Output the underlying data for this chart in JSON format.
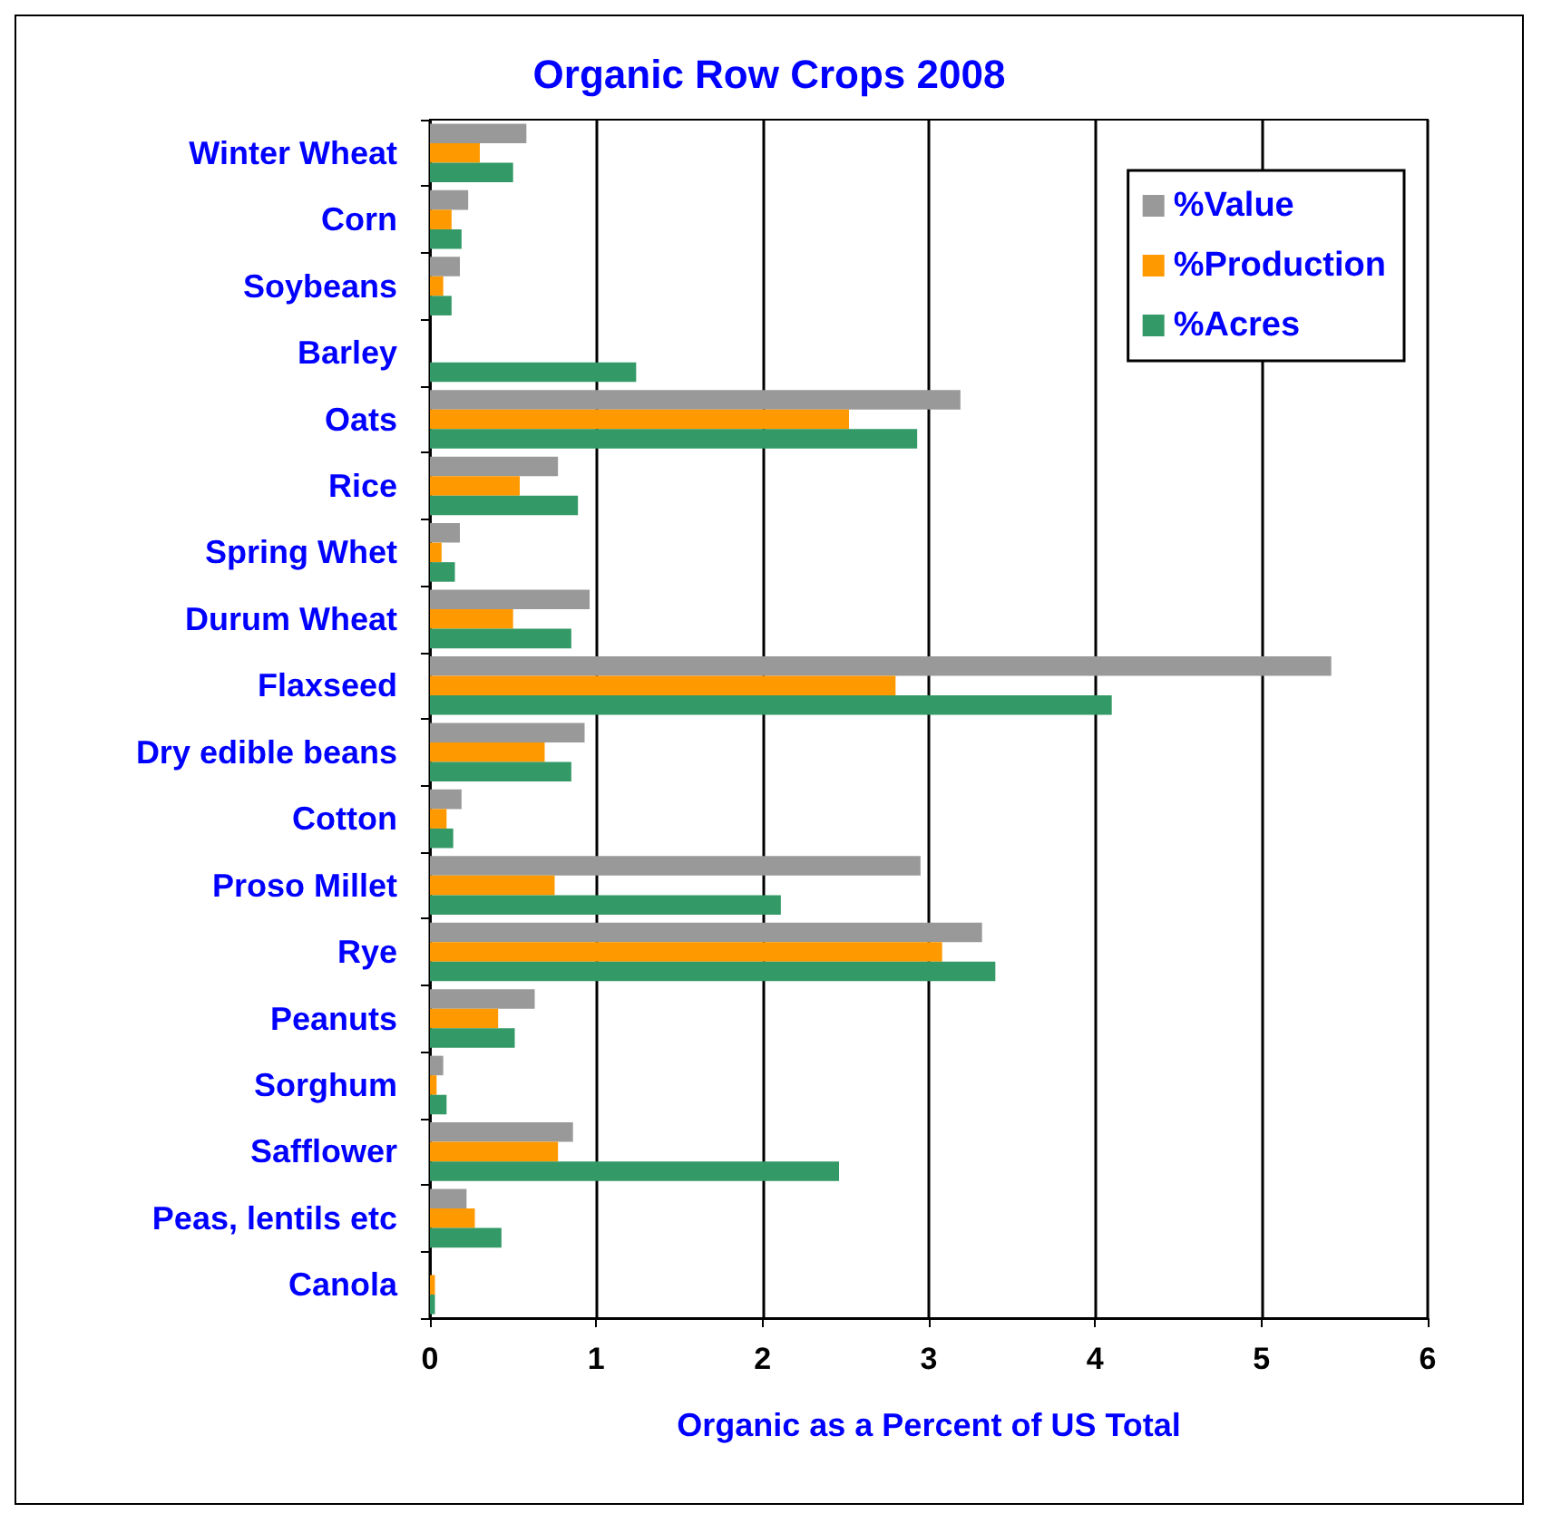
{
  "chart_data": {
    "type": "bar",
    "orientation": "horizontal",
    "title": "Organic Row Crops 2008",
    "xlabel": "Organic as a Percent of US Total",
    "categories": [
      "Winter Wheat",
      "Corn",
      "Soybeans",
      "Barley",
      "Oats",
      "Rice",
      "Spring Whet",
      "Durum Wheat",
      "Flaxseed",
      "Dry edible beans",
      "Cotton",
      "Proso Millet",
      "Rye",
      "Peanuts",
      "Sorghum",
      "Safflower",
      "Peas, lentils etc",
      "Canola"
    ],
    "series": [
      {
        "name": "%Value",
        "color": "#999999",
        "values": [
          0.58,
          0.23,
          0.18,
          0,
          3.19,
          0.77,
          0.18,
          0.96,
          5.42,
          0.93,
          0.19,
          2.95,
          3.32,
          0.63,
          0.08,
          0.86,
          0.22,
          0
        ]
      },
      {
        "name": "%Production",
        "color": "#ff9900",
        "values": [
          0.3,
          0.13,
          0.08,
          0,
          2.52,
          0.54,
          0.07,
          0.5,
          2.8,
          0.69,
          0.1,
          0.75,
          3.08,
          0.41,
          0.04,
          0.77,
          0.27,
          0.03
        ]
      },
      {
        "name": "%Acres",
        "color": "#339966",
        "values": [
          0.5,
          0.19,
          0.13,
          1.24,
          2.93,
          0.89,
          0.15,
          0.85,
          4.1,
          0.85,
          0.14,
          2.11,
          3.4,
          0.51,
          0.1,
          2.46,
          0.43,
          0.03
        ]
      }
    ],
    "xlim": [
      0,
      6
    ],
    "xticks": [
      0,
      1,
      2,
      3,
      4,
      5,
      6
    ],
    "grid": "x",
    "legend": "top right"
  }
}
